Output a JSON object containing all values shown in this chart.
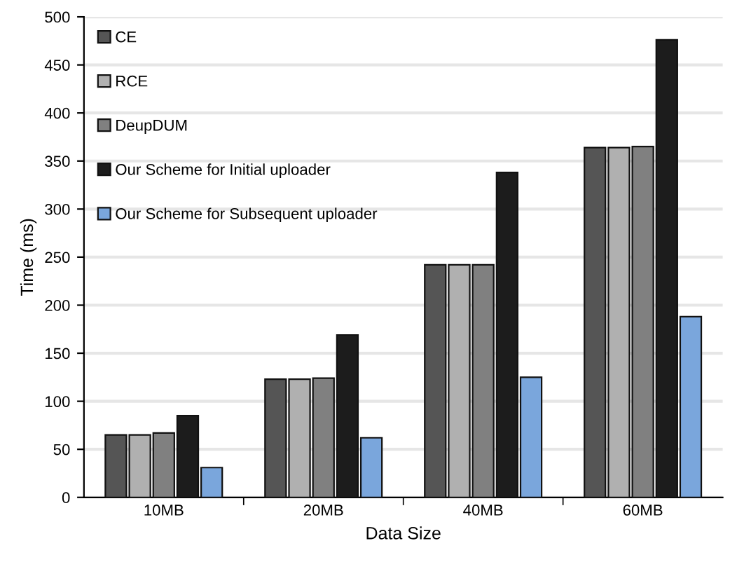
{
  "chart_data": {
    "type": "bar",
    "xlabel": "Data Size",
    "ylabel": "Time (ms)",
    "categories": [
      "10MB",
      "20MB",
      "40MB",
      "60MB"
    ],
    "series": [
      {
        "name": "CE",
        "color": "#555555",
        "values": [
          65,
          123,
          242,
          364
        ]
      },
      {
        "name": "RCE",
        "color": "#b0b0b0",
        "values": [
          65,
          123,
          242,
          364
        ]
      },
      {
        "name": "DeupDUM",
        "color": "#808080",
        "values": [
          67,
          124,
          242,
          365
        ]
      },
      {
        "name": "Our Scheme for Initial uploader",
        "color": "#1c1c1c",
        "values": [
          85,
          169,
          338,
          476
        ]
      },
      {
        "name": "Our Scheme for Subsequent uploader",
        "color": "#7aa6dc",
        "values": [
          31,
          62,
          125,
          188
        ]
      }
    ],
    "ylim": [
      0,
      500
    ],
    "yticks": [
      0,
      50,
      100,
      150,
      200,
      250,
      300,
      350,
      400,
      450,
      500
    ],
    "grid": "y",
    "legend": "top left"
  }
}
